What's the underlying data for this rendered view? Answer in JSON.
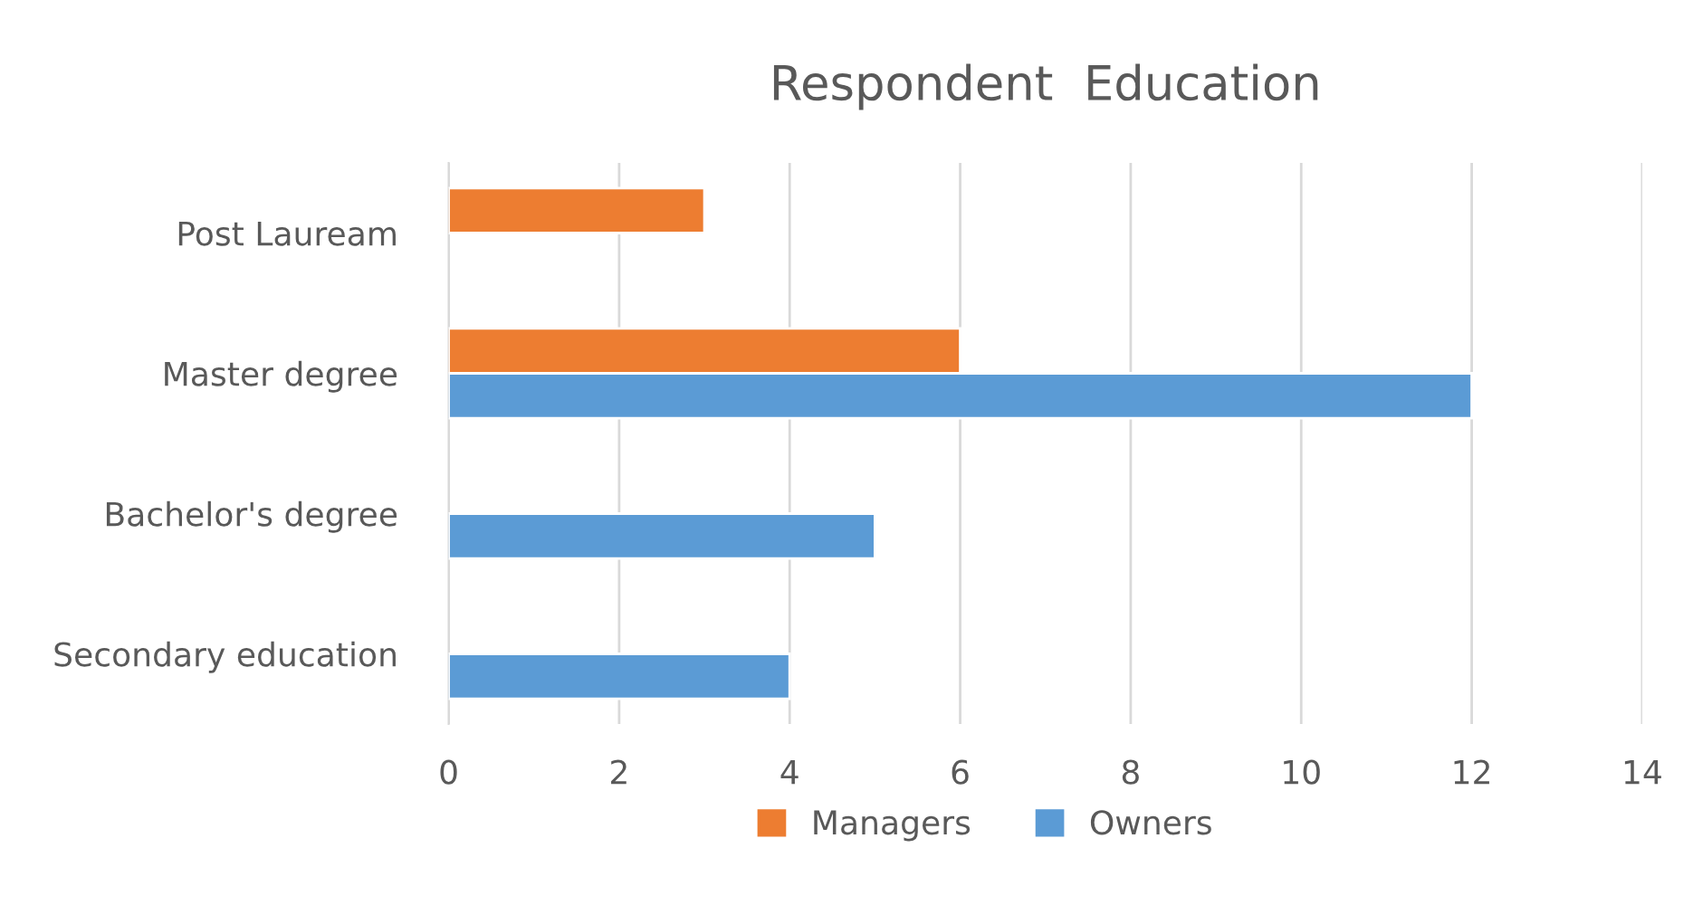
{
  "chart_data": {
    "type": "bar",
    "orientation": "horizontal",
    "title": "Respondent  Education",
    "categories": [
      "Post Lauream",
      "Master degree",
      "Bachelor's degree",
      "Secondary education"
    ],
    "series": [
      {
        "name": "Managers",
        "color": "#ed7d31",
        "values": [
          3,
          6,
          null,
          null
        ]
      },
      {
        "name": "Owners",
        "color": "#5b9bd5",
        "values": [
          null,
          12,
          5,
          4
        ]
      }
    ],
    "xlim": [
      0,
      14
    ],
    "xticks": [
      0,
      2,
      4,
      6,
      8,
      10,
      12,
      14
    ],
    "grid": "x",
    "legend": "bottom"
  }
}
